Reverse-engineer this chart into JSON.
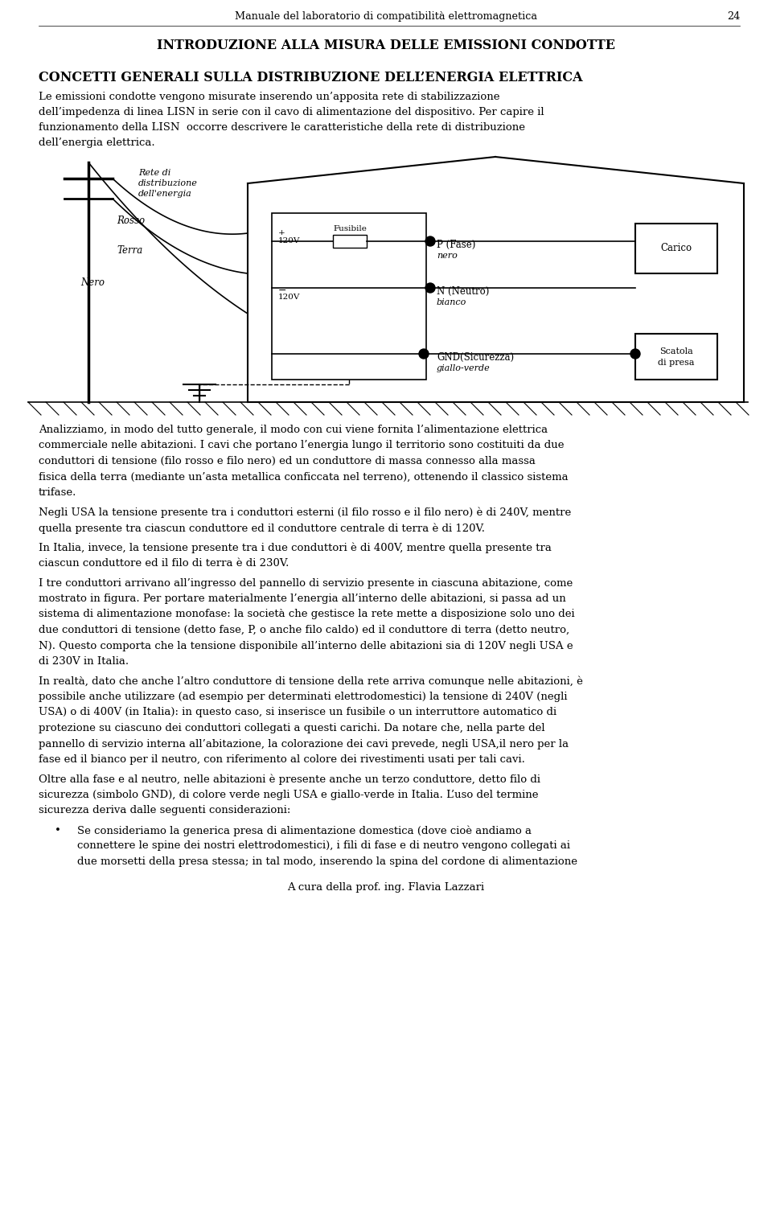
{
  "bg_color": "#ffffff",
  "page_width": 9.6,
  "page_height": 15.27,
  "header_text": "Manuale del laboratorio di compatibilità elettromagnetica",
  "page_number": "24",
  "section_title": "INTRODUZIONE ALLA MISURA DELLE EMISSIONI CONDOTTE",
  "subsection_title": "CONCETTI GENERALI SULLA DISTRIBUZIONE DELL’ENERGIA ELETTRICA",
  "footer_text": "A cura della prof. ing. Flavia Lazzari"
}
